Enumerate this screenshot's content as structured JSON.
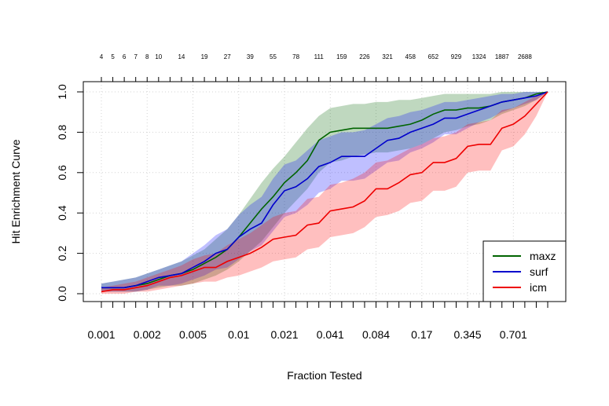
{
  "chart_data": {
    "type": "line",
    "title": "",
    "xlabel": "Fraction Tested",
    "ylabel": "Hit Enrichment Curve",
    "ylim": [
      0,
      1
    ],
    "y_ticks": [
      "0.0",
      "0.2",
      "0.4",
      "0.6",
      "0.8",
      "1.0"
    ],
    "x_tick_labels": [
      "0.001",
      "0.002",
      "0.005",
      "0.01",
      "0.021",
      "0.041",
      "0.084",
      "0.17",
      "0.345",
      "0.701"
    ],
    "top_labels": [
      "4",
      "5",
      "6",
      "7",
      "8",
      "10",
      "14",
      "19",
      "27",
      "39",
      "55",
      "78",
      "111",
      "159",
      "226",
      "321",
      "458",
      "652",
      "929",
      "1324",
      "1887",
      "2688"
    ],
    "grid": true,
    "legend_position": "bottom-right",
    "n_points": 40,
    "series": [
      {
        "name": "maxz",
        "color": "#006400",
        "fill": "rgba(0,100,0,0.25)",
        "values": [
          0.03,
          0.03,
          0.03,
          0.04,
          0.05,
          0.07,
          0.09,
          0.1,
          0.12,
          0.15,
          0.18,
          0.22,
          0.28,
          0.35,
          0.42,
          0.48,
          0.55,
          0.6,
          0.66,
          0.76,
          0.8,
          0.81,
          0.82,
          0.82,
          0.82,
          0.82,
          0.83,
          0.84,
          0.86,
          0.89,
          0.91,
          0.91,
          0.92,
          0.92,
          0.93,
          0.95,
          0.96,
          0.97,
          0.99,
          1.0
        ],
        "upper": [
          0.05,
          0.06,
          0.07,
          0.08,
          0.1,
          0.12,
          0.14,
          0.16,
          0.19,
          0.22,
          0.27,
          0.32,
          0.39,
          0.47,
          0.55,
          0.62,
          0.68,
          0.75,
          0.82,
          0.88,
          0.92,
          0.93,
          0.94,
          0.94,
          0.95,
          0.95,
          0.96,
          0.96,
          0.97,
          0.98,
          0.99,
          0.99,
          0.99,
          0.99,
          0.99,
          1.0,
          1.0,
          1.0,
          1.0,
          1.0
        ],
        "lower": [
          0.01,
          0.01,
          0.01,
          0.01,
          0.02,
          0.03,
          0.04,
          0.04,
          0.05,
          0.07,
          0.09,
          0.12,
          0.16,
          0.21,
          0.26,
          0.33,
          0.4,
          0.46,
          0.52,
          0.6,
          0.65,
          0.66,
          0.68,
          0.69,
          0.7,
          0.7,
          0.71,
          0.72,
          0.74,
          0.77,
          0.8,
          0.81,
          0.83,
          0.84,
          0.86,
          0.89,
          0.91,
          0.93,
          0.96,
          1.0
        ]
      },
      {
        "name": "surf",
        "color": "#0000cc",
        "fill": "rgba(0,0,255,0.25)",
        "values": [
          0.03,
          0.03,
          0.03,
          0.04,
          0.06,
          0.08,
          0.09,
          0.1,
          0.13,
          0.16,
          0.2,
          0.22,
          0.28,
          0.32,
          0.35,
          0.44,
          0.51,
          0.53,
          0.57,
          0.63,
          0.65,
          0.68,
          0.68,
          0.68,
          0.72,
          0.76,
          0.77,
          0.8,
          0.82,
          0.84,
          0.87,
          0.87,
          0.89,
          0.91,
          0.93,
          0.95,
          0.96,
          0.97,
          0.98,
          1.0
        ],
        "upper": [
          0.05,
          0.06,
          0.07,
          0.08,
          0.1,
          0.12,
          0.14,
          0.16,
          0.2,
          0.24,
          0.29,
          0.32,
          0.39,
          0.44,
          0.48,
          0.57,
          0.64,
          0.66,
          0.71,
          0.76,
          0.78,
          0.8,
          0.8,
          0.81,
          0.84,
          0.87,
          0.88,
          0.9,
          0.91,
          0.93,
          0.95,
          0.95,
          0.96,
          0.97,
          0.98,
          0.99,
          0.99,
          1.0,
          1.0,
          1.0
        ],
        "lower": [
          0.01,
          0.01,
          0.01,
          0.01,
          0.02,
          0.04,
          0.04,
          0.05,
          0.07,
          0.09,
          0.12,
          0.13,
          0.17,
          0.21,
          0.24,
          0.31,
          0.38,
          0.4,
          0.44,
          0.5,
          0.52,
          0.56,
          0.56,
          0.57,
          0.61,
          0.65,
          0.66,
          0.7,
          0.72,
          0.75,
          0.79,
          0.79,
          0.82,
          0.85,
          0.87,
          0.9,
          0.92,
          0.94,
          0.96,
          1.0
        ]
      },
      {
        "name": "icm",
        "color": "#ee0000",
        "fill": "rgba(255,0,0,0.25)",
        "values": [
          0.01,
          0.02,
          0.02,
          0.03,
          0.04,
          0.06,
          0.08,
          0.09,
          0.11,
          0.13,
          0.13,
          0.16,
          0.18,
          0.2,
          0.23,
          0.27,
          0.28,
          0.29,
          0.34,
          0.35,
          0.41,
          0.42,
          0.43,
          0.46,
          0.52,
          0.52,
          0.55,
          0.59,
          0.6,
          0.65,
          0.65,
          0.67,
          0.73,
          0.74,
          0.74,
          0.82,
          0.84,
          0.88,
          0.94,
          1.0
        ],
        "upper": [
          0.03,
          0.04,
          0.05,
          0.06,
          0.08,
          0.1,
          0.12,
          0.14,
          0.17,
          0.19,
          0.2,
          0.24,
          0.27,
          0.3,
          0.34,
          0.38,
          0.4,
          0.41,
          0.47,
          0.48,
          0.54,
          0.55,
          0.57,
          0.6,
          0.65,
          0.66,
          0.69,
          0.72,
          0.74,
          0.77,
          0.78,
          0.8,
          0.84,
          0.85,
          0.86,
          0.91,
          0.92,
          0.95,
          0.98,
          1.0
        ],
        "lower": [
          0.0,
          0.0,
          0.0,
          0.01,
          0.01,
          0.02,
          0.03,
          0.04,
          0.05,
          0.06,
          0.06,
          0.08,
          0.09,
          0.11,
          0.13,
          0.16,
          0.17,
          0.18,
          0.22,
          0.23,
          0.28,
          0.29,
          0.3,
          0.33,
          0.38,
          0.39,
          0.41,
          0.45,
          0.46,
          0.51,
          0.51,
          0.53,
          0.6,
          0.61,
          0.61,
          0.71,
          0.73,
          0.79,
          0.88,
          1.0
        ]
      }
    ]
  }
}
